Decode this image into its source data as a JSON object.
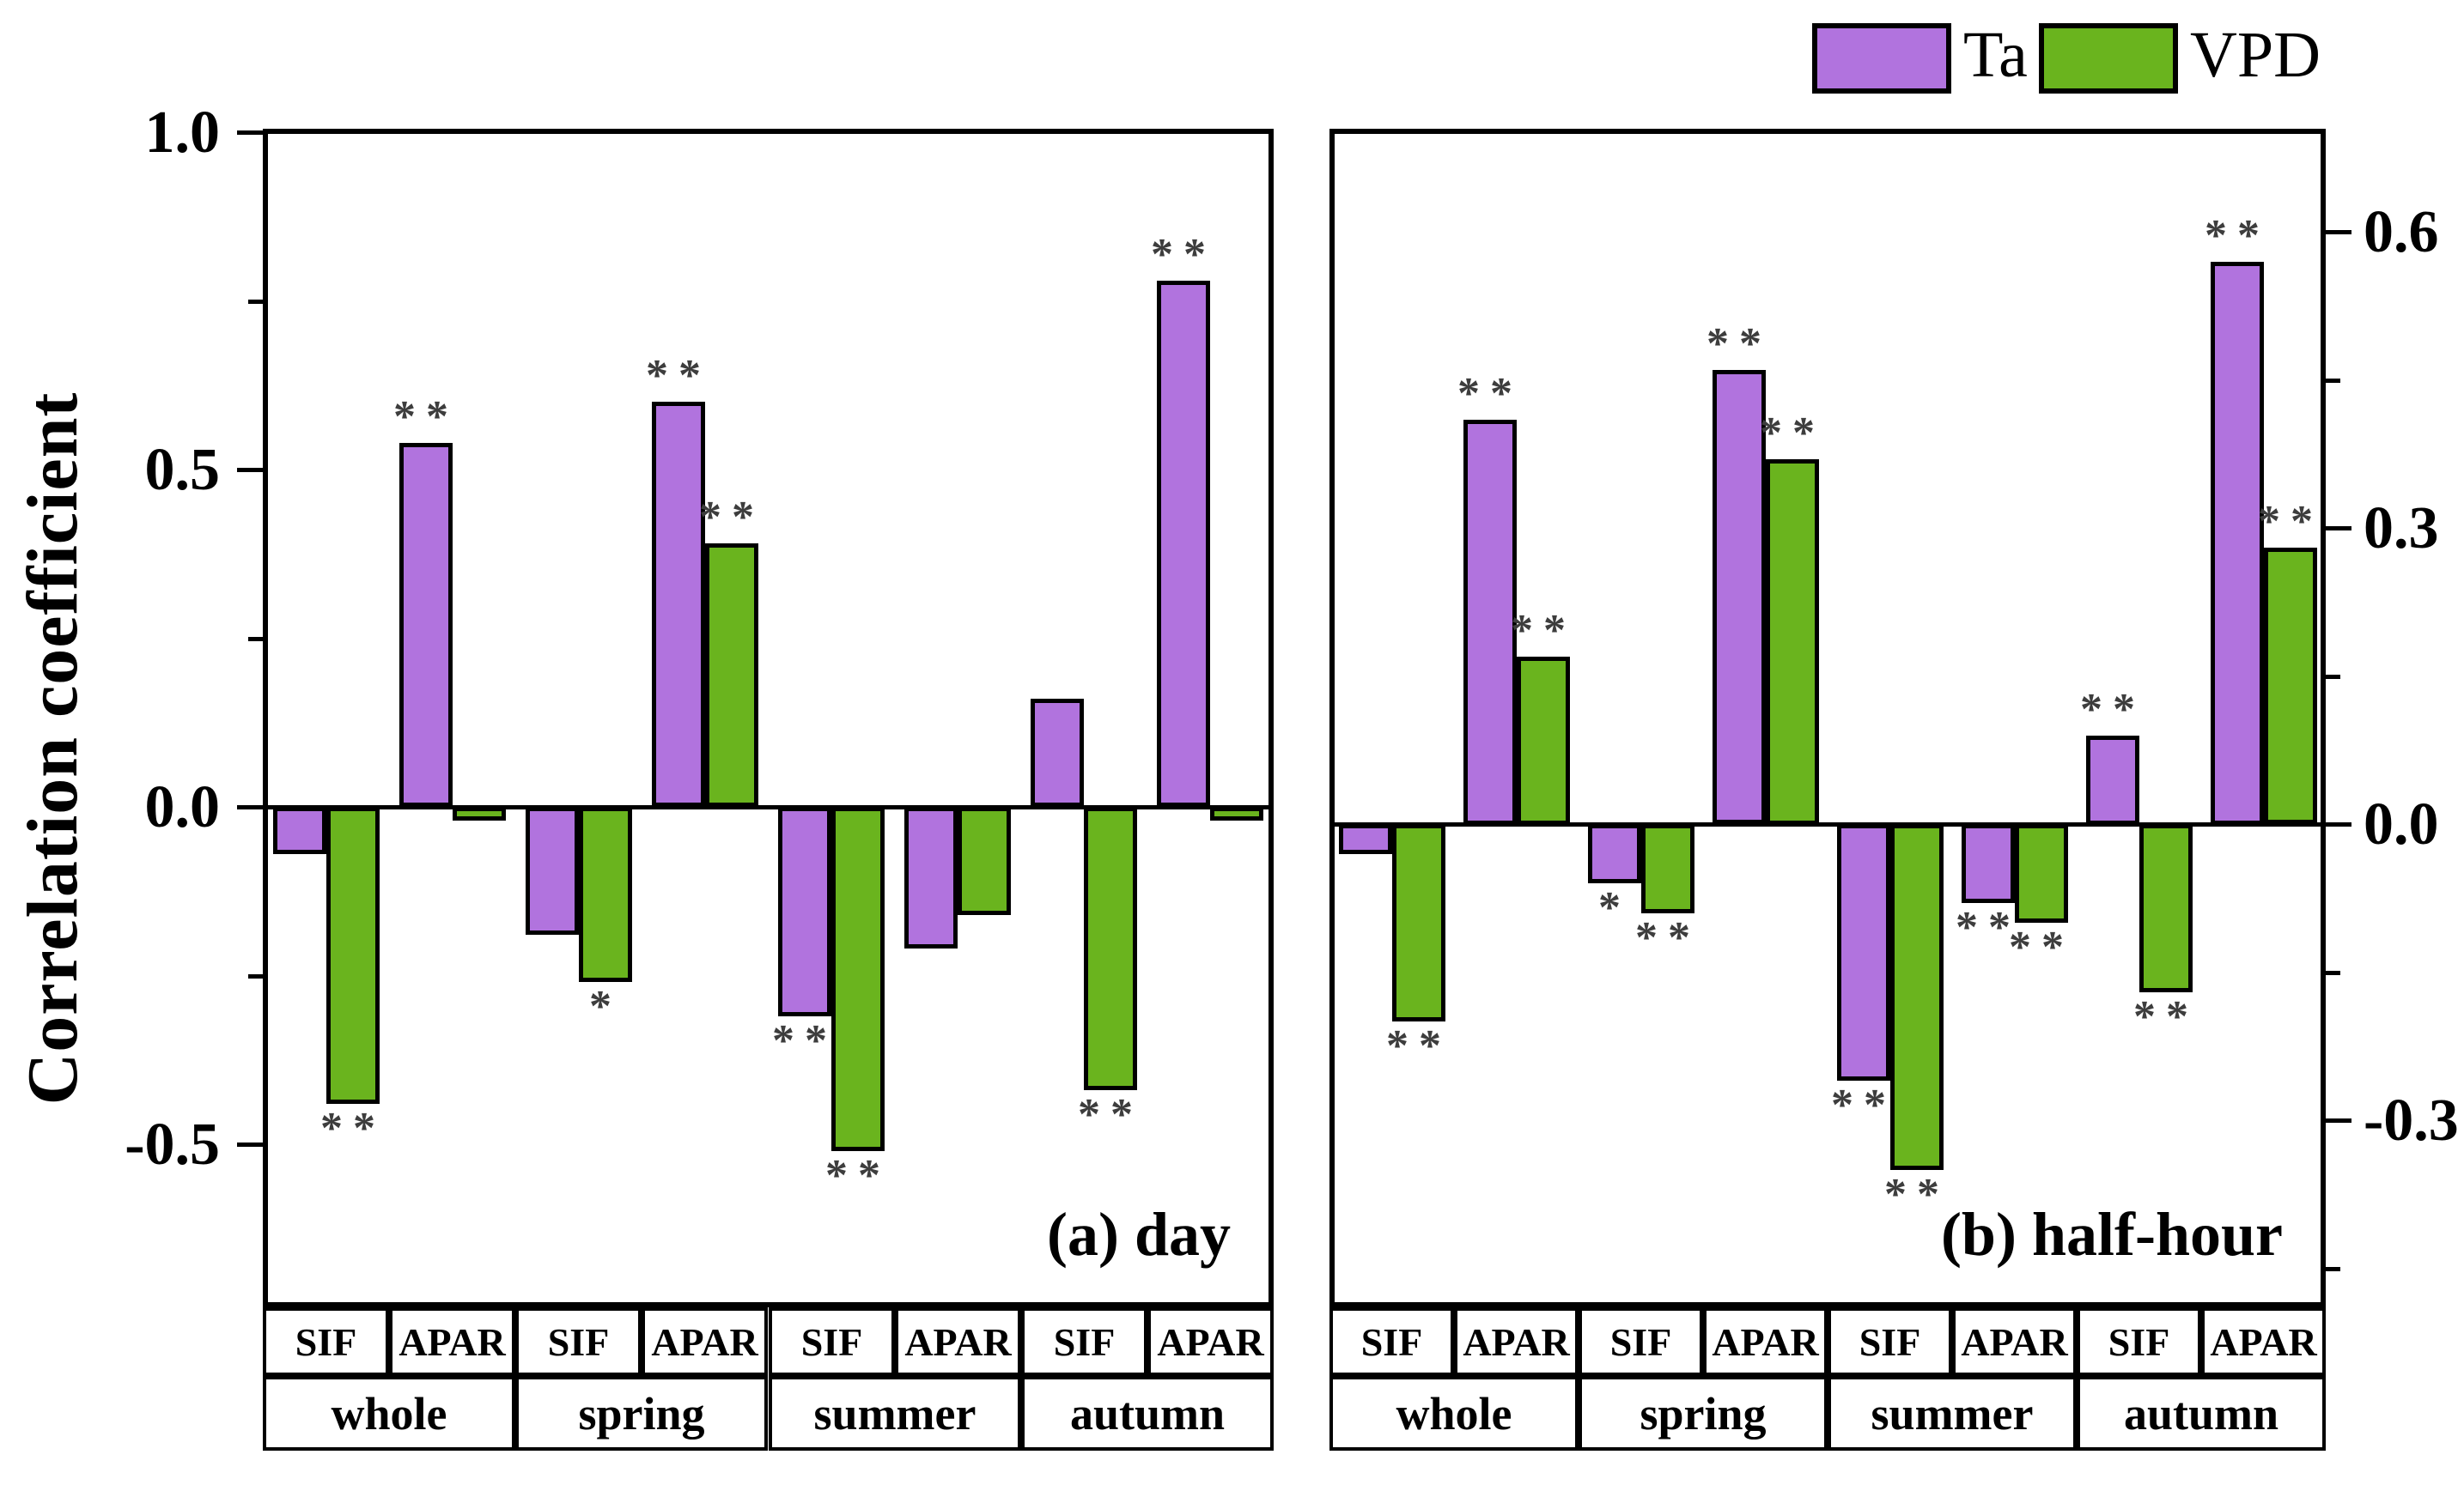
{
  "chart_data": {
    "type": "bar",
    "title": "",
    "ylabel": "Correlation coefficient",
    "sig_color": "#3d3d3d",
    "legend": [
      {
        "name": "Ta",
        "color": "#b173de"
      },
      {
        "name": "VPD",
        "color": "#6ab41e"
      }
    ],
    "panels": [
      {
        "label": "(a) day",
        "axis_side": "left",
        "ylim": [
          -0.74,
          1.0
        ],
        "yticks_major": [
          1.0,
          0.5,
          0.0,
          -0.5
        ],
        "ytick_labels": [
          "1.0",
          "0.5",
          "0.0",
          "-0.5"
        ],
        "yticks_minor": [
          0.75,
          0.25,
          -0.25,
          -0.75
        ],
        "seasons": [
          "whole",
          "spring",
          "summer",
          "autumn"
        ],
        "cells": [
          "SIF",
          "APAR",
          "SIF",
          "APAR",
          "SIF",
          "APAR",
          "SIF",
          "APAR"
        ],
        "series": [
          {
            "name": "Ta",
            "values": [
              -0.07,
              0.54,
              -0.19,
              0.6,
              -0.31,
              -0.21,
              0.16,
              0.78
            ],
            "sig": [
              "",
              "**",
              "",
              "**",
              "**",
              "",
              "",
              "**"
            ]
          },
          {
            "name": "VPD",
            "values": [
              -0.44,
              -0.02,
              -0.26,
              0.39,
              -0.51,
              -0.16,
              -0.42,
              -0.02
            ],
            "sig": [
              "**",
              "",
              "*",
              "**",
              "**",
              "",
              "**",
              ""
            ]
          }
        ]
      },
      {
        "label": "(b) half-hour",
        "axis_side": "right",
        "ylim": [
          -0.49,
          0.7
        ],
        "yticks_major": [
          0.6,
          0.3,
          0.0,
          -0.3
        ],
        "ytick_labels": [
          "0.6",
          "0.3",
          "0.0",
          "-0.3"
        ],
        "yticks_minor": [
          0.45,
          0.15,
          -0.15,
          -0.45
        ],
        "seasons": [
          "whole",
          "spring",
          "summer",
          "autumn"
        ],
        "cells": [
          "SIF",
          "APAR",
          "SIF",
          "APAR",
          "SIF",
          "APAR",
          "SIF",
          "APAR"
        ],
        "series": [
          {
            "name": "Ta",
            "values": [
              -0.03,
              0.41,
              -0.06,
              0.46,
              -0.26,
              -0.08,
              0.09,
              0.57
            ],
            "sig": [
              "",
              "**",
              "*",
              "**",
              "**",
              "**",
              "**",
              "**"
            ]
          },
          {
            "name": "VPD",
            "values": [
              -0.2,
              0.17,
              -0.09,
              0.37,
              -0.35,
              -0.1,
              -0.17,
              0.28
            ],
            "sig": [
              "**",
              "**",
              "**",
              "**",
              "**",
              "**",
              "**",
              "**"
            ]
          }
        ]
      }
    ]
  }
}
